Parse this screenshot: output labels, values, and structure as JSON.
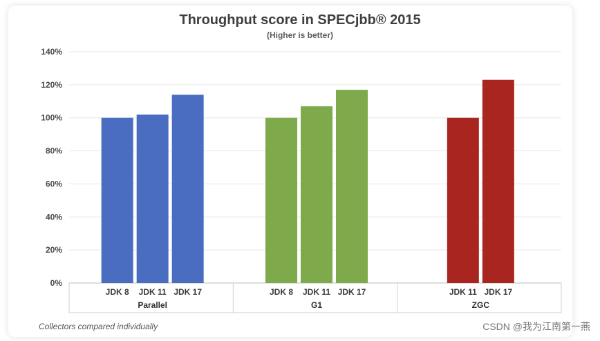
{
  "chart_data": {
    "type": "bar",
    "title": "Throughput score in SPECjbb® 2015",
    "subtitle": "(Higher is better)",
    "xlabel": "",
    "ylabel": "",
    "ylim": [
      0,
      140
    ],
    "y_ticks": [
      "0%",
      "20%",
      "40%",
      "60%",
      "80%",
      "100%",
      "120%",
      "140%"
    ],
    "grid": true,
    "groups": [
      {
        "name": "Parallel",
        "categories": [
          "JDK 8",
          "JDK 11",
          "JDK 17"
        ],
        "values": [
          100,
          102,
          114
        ],
        "color": "#4a6cc1"
      },
      {
        "name": "G1",
        "categories": [
          "JDK 8",
          "JDK 11",
          "JDK 17"
        ],
        "values": [
          100,
          107,
          117
        ],
        "color": "#7faa4c"
      },
      {
        "name": "ZGC",
        "categories": [
          "JDK 11",
          "JDK 17"
        ],
        "values": [
          100,
          123
        ],
        "color": "#a8261f"
      }
    ]
  },
  "footnote": "Collectors compared individually",
  "watermark": "CSDN @我为江南第一燕"
}
